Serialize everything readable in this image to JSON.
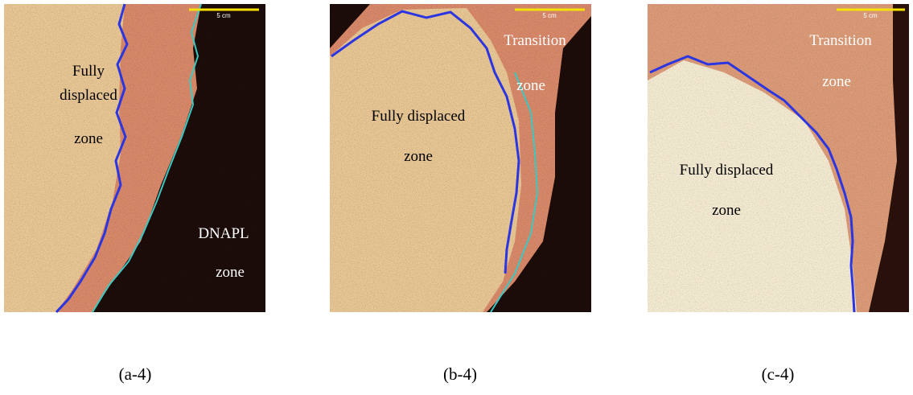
{
  "panels": [
    {
      "scale_bar": "5 cm",
      "labels": [
        "Fully",
        "displaced",
        "zone",
        "DNAPL",
        "zone"
      ],
      "caption": "(a-4)"
    },
    {
      "scale_bar": "5 cm",
      "labels": [
        "Transition",
        "zone",
        "Fully displaced",
        "zone"
      ],
      "caption": "(b-4)"
    },
    {
      "scale_bar": "5 cm",
      "labels": [
        "Transition",
        "zone",
        "Fully displaced",
        "zone"
      ],
      "caption": "(c-4)"
    }
  ]
}
